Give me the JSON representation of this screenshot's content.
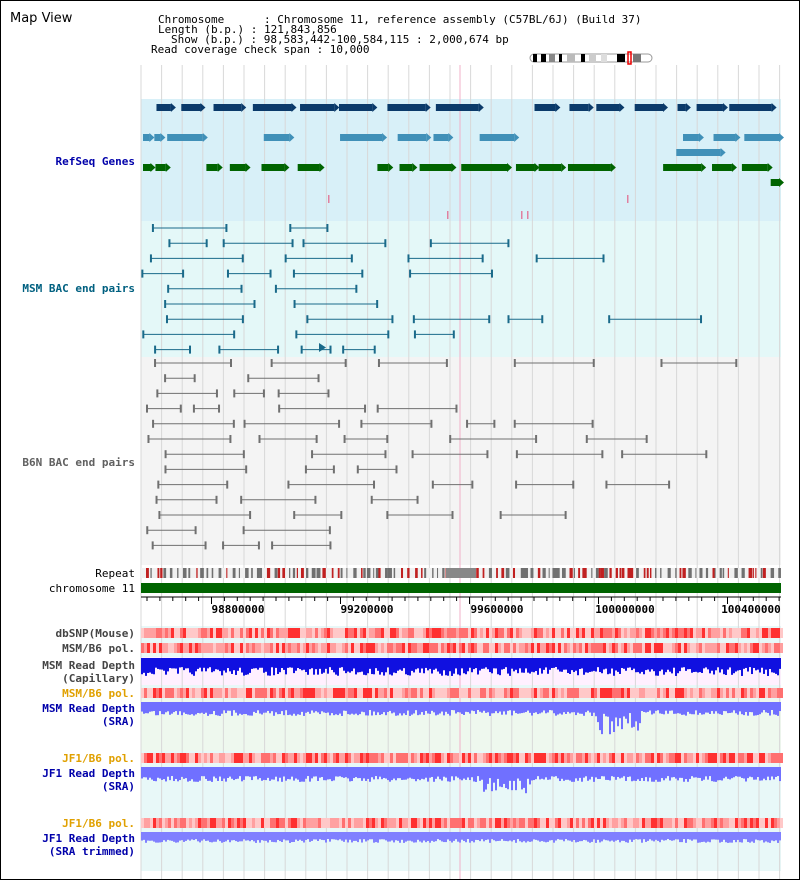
{
  "page_title": "Map View",
  "info": {
    "chromosome_line": "Chromosome      : Chromosome 11, reference assembly (C57BL/6J) (Build 37)",
    "length_line": "Length (b.p.) : 121,843,856",
    "show_line": "Show (b.p.) : 98,583,442-100,584,115 : 2,000,674 bp",
    "span_line": "Read coverage check span : 10,000"
  },
  "tracks": {
    "refseq": "RefSeq Genes",
    "msm_bac": "MSM BAC end pairs",
    "b6n_bac": "B6N BAC end pairs",
    "repeat": "Repeat",
    "chromosome": "chromosome 11",
    "dbsnp": "dbSNP(Mouse)",
    "msm_b6_pol_1": "MSM/B6 pol.",
    "msm_read_depth_cap_1": "MSM Read Depth",
    "msm_read_depth_cap_2": "(Capillary)",
    "msm_b6_pol_2": "MSM/B6 pol.",
    "msm_read_depth_sra_1": "MSM Read Depth",
    "msm_read_depth_sra_2": "(SRA)",
    "jf1_b6_pol_1": "JF1/B6 pol.",
    "jf1_read_depth_sra_1": "JF1 Read Depth",
    "jf1_read_depth_sra_2": "(SRA)",
    "jf1_b6_pol_2": "JF1/B6 pol.",
    "jf1_read_depth_trim_1": "JF1 Read Depth",
    "jf1_read_depth_trim_2": "(SRA trimmed)"
  },
  "axis_ticks": [
    "98800000",
    "99200000",
    "99600000",
    "100000000",
    "100400000"
  ],
  "colors": {
    "refseq_blue_dark": "#0a3a6a",
    "refseq_blue_mid": "#4090b8",
    "refseq_green": "#006400",
    "msm_line": "#1a6a8a",
    "b6n_line": "#707070",
    "chromosome_bar": "#006400",
    "depth_blue": "#1010e0",
    "depth_light": "#7070ff",
    "pol_red": "#ff4040",
    "label_blue": "#0000aa",
    "label_teal": "#006080",
    "label_orange": "#e0a000"
  }
}
